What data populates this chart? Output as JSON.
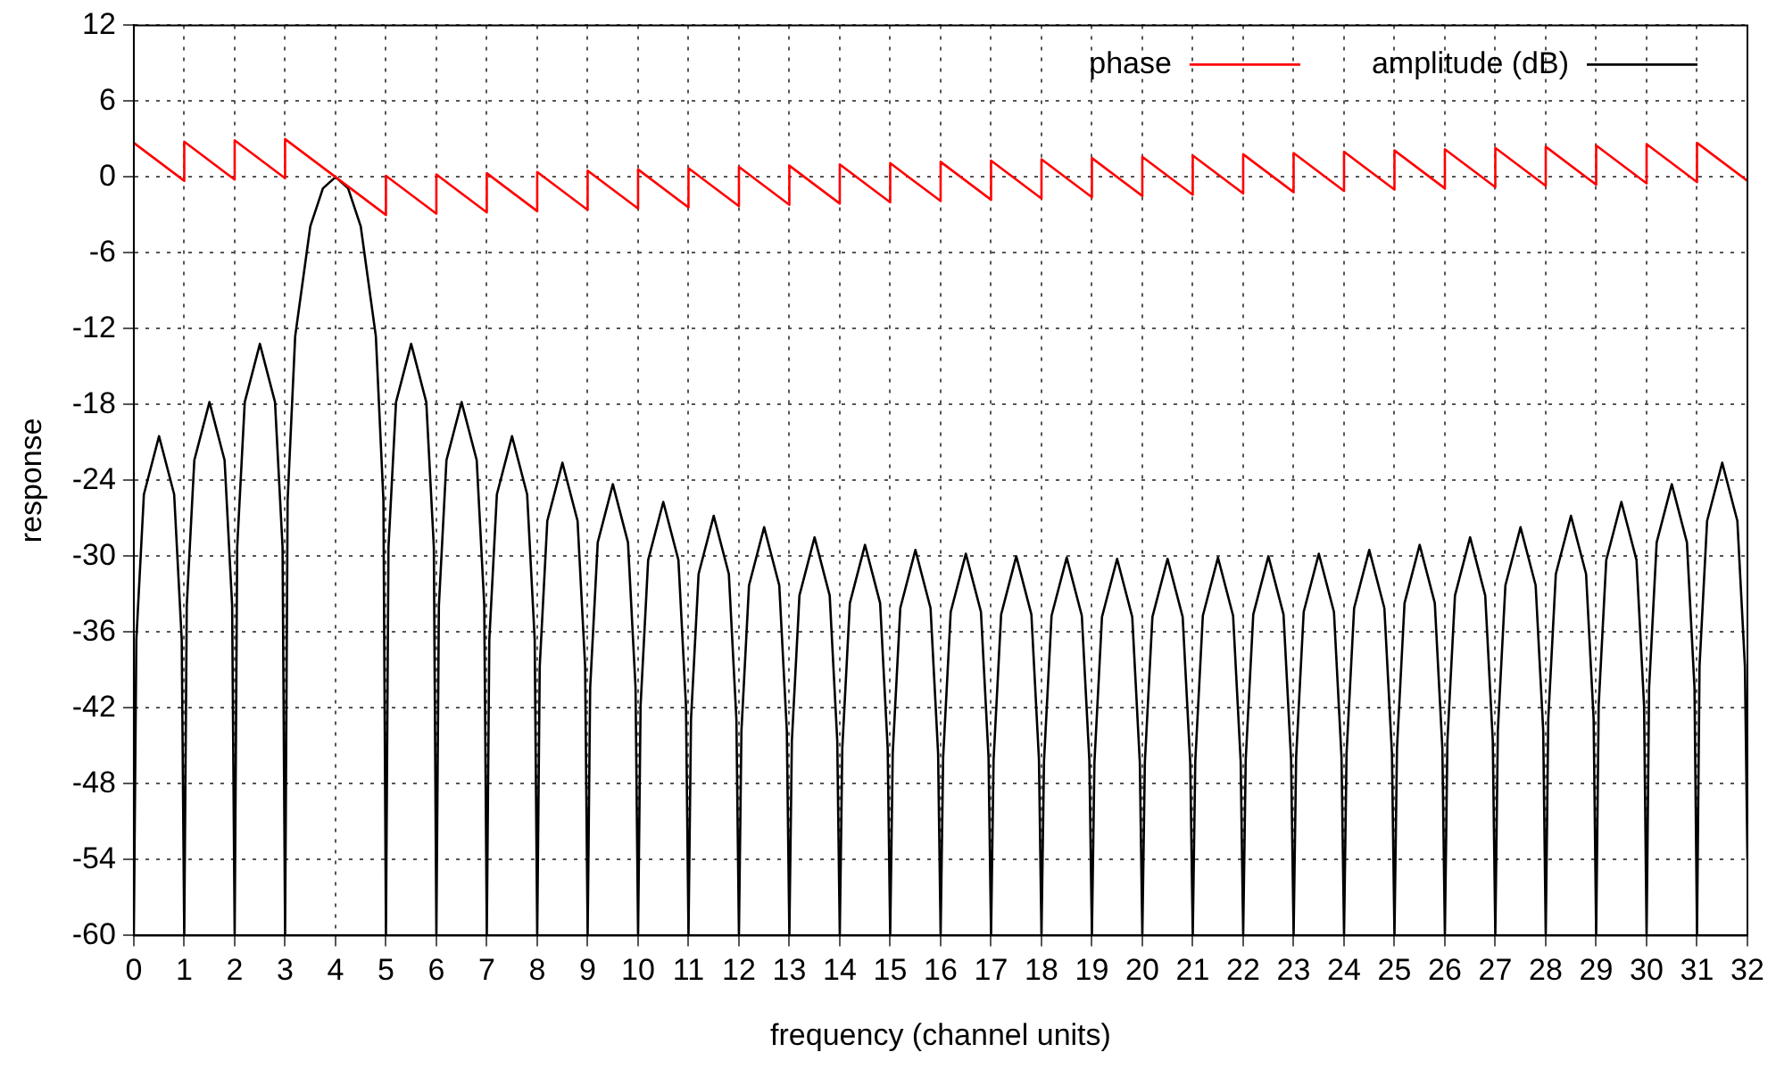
{
  "chart_data": {
    "type": "line",
    "xlabel": "frequency (channel units)",
    "ylabel": "response",
    "xlim": [
      0,
      32
    ],
    "xticks": [
      0,
      1,
      2,
      3,
      4,
      5,
      6,
      7,
      8,
      9,
      10,
      11,
      12,
      13,
      14,
      15,
      16,
      17,
      18,
      19,
      20,
      21,
      22,
      23,
      24,
      25,
      26,
      27,
      28,
      29,
      30,
      31,
      32
    ],
    "ylim": [
      -60,
      12
    ],
    "yticks": [
      -60,
      -54,
      -48,
      -42,
      -36,
      -30,
      -24,
      -18,
      -12,
      -6,
      0,
      6,
      12
    ],
    "grid": true,
    "legend": "top right",
    "line_style": "solid",
    "marker": "none",
    "series": [
      {
        "name": "phase",
        "color": "#ff0000",
        "x": [
          0,
          1,
          1,
          2,
          2,
          3,
          3,
          5,
          5,
          6,
          6,
          7,
          7,
          8,
          8,
          9,
          9,
          10,
          10,
          11,
          11,
          12,
          12,
          13,
          13,
          14,
          14,
          15,
          15,
          16,
          16,
          17,
          17,
          18,
          18,
          19,
          19,
          20,
          20,
          21,
          21,
          22,
          22,
          23,
          23,
          24,
          24,
          25,
          25,
          26,
          26,
          27,
          27,
          28,
          28,
          29,
          29,
          30,
          30,
          31,
          31,
          32
        ],
        "values": [
          2.7,
          -0.3,
          2.8,
          -0.2,
          2.9,
          -0.1,
          3.0,
          -3.0,
          0.1,
          -2.9,
          0.2,
          -2.8,
          0.3,
          -2.7,
          0.4,
          -2.6,
          0.5,
          -2.5,
          0.6,
          -2.4,
          0.7,
          -2.3,
          0.8,
          -2.2,
          0.9,
          -2.1,
          1.0,
          -2.0,
          1.1,
          -1.9,
          1.2,
          -1.8,
          1.3,
          -1.7,
          1.4,
          -1.6,
          1.5,
          -1.5,
          1.6,
          -1.4,
          1.7,
          -1.3,
          1.8,
          -1.2,
          1.9,
          -1.1,
          2.0,
          -1.0,
          2.1,
          -0.9,
          2.2,
          -0.8,
          2.3,
          -0.7,
          2.4,
          -0.6,
          2.5,
          -0.5,
          2.6,
          -0.4,
          2.7,
          -0.3
        ]
      },
      {
        "name": "amplitude (dB)",
        "color": "#000000",
        "x": [
          0,
          0.05,
          0.2,
          0.5,
          0.8,
          0.95,
          1,
          1.05,
          1.2,
          1.5,
          1.8,
          1.95,
          2,
          2.05,
          2.2,
          2.5,
          2.8,
          2.95,
          3,
          3.05,
          3.2,
          3.5,
          3.75,
          4,
          4.25,
          4.5,
          4.8,
          4.95,
          5,
          5.05,
          5.2,
          5.5,
          5.8,
          5.95,
          6,
          6.05,
          6.2,
          6.5,
          6.8,
          6.95,
          7,
          7.05,
          7.2,
          7.5,
          7.8,
          7.95,
          8,
          8.05,
          8.2,
          8.5,
          8.8,
          8.95,
          9,
          9.05,
          9.2,
          9.5,
          9.8,
          9.95,
          10,
          10.05,
          10.2,
          10.5,
          10.8,
          10.95,
          11,
          11.05,
          11.2,
          11.5,
          11.8,
          11.95,
          12,
          12.05,
          12.2,
          12.5,
          12.8,
          12.95,
          13,
          13.05,
          13.2,
          13.5,
          13.8,
          13.95,
          14,
          14.05,
          14.2,
          14.5,
          14.8,
          14.95,
          15,
          15.05,
          15.2,
          15.5,
          15.8,
          15.95,
          16,
          16.05,
          16.2,
          16.5,
          16.8,
          16.95,
          17,
          17.05,
          17.2,
          17.5,
          17.8,
          17.95,
          18,
          18.05,
          18.2,
          18.5,
          18.8,
          18.95,
          19,
          19.05,
          19.2,
          19.5,
          19.8,
          19.95,
          20,
          20.05,
          20.2,
          20.5,
          20.8,
          20.95,
          21,
          21.05,
          21.2,
          21.5,
          21.8,
          21.95,
          22,
          22.05,
          22.2,
          22.5,
          22.8,
          22.95,
          23,
          23.05,
          23.2,
          23.5,
          23.8,
          23.95,
          24,
          24.05,
          24.2,
          24.5,
          24.8,
          24.95,
          25,
          25.05,
          25.2,
          25.5,
          25.8,
          25.95,
          26,
          26.05,
          26.2,
          26.5,
          26.8,
          26.95,
          27,
          27.05,
          27.2,
          27.5,
          27.8,
          27.95,
          28,
          28.05,
          28.2,
          28.5,
          28.8,
          28.95,
          29,
          29.05,
          29.2,
          29.5,
          29.8,
          29.95,
          30,
          30.05,
          30.2,
          30.5,
          30.8,
          30.95,
          31,
          31.05,
          31.2,
          31.5,
          31.8,
          31.95,
          32
        ],
        "values": [
          -60,
          -36.6,
          -25.1,
          -20.5,
          -25.1,
          -36.6,
          -60,
          -33.9,
          -22.4,
          -17.8,
          -22.4,
          -33.9,
          -60,
          -29.3,
          -17.8,
          -13.2,
          -17.8,
          -29.3,
          -60,
          -25.6,
          -12.6,
          -3.9,
          -0.9,
          0,
          -0.9,
          -3.9,
          -12.6,
          -25.6,
          -60,
          -29.3,
          -17.8,
          -13.2,
          -17.8,
          -29.3,
          -60,
          -33.9,
          -22.4,
          -17.8,
          -22.4,
          -33.9,
          -60,
          -36.6,
          -25.1,
          -20.5,
          -25.1,
          -36.6,
          -60,
          -38.7,
          -27.2,
          -22.6,
          -27.2,
          -38.7,
          -60,
          -40.4,
          -28.9,
          -24.3,
          -28.9,
          -40.4,
          -60,
          -41.8,
          -30.3,
          -25.7,
          -30.3,
          -41.8,
          -60,
          -42.9,
          -31.4,
          -26.8,
          -31.4,
          -42.9,
          -60,
          -43.8,
          -32.3,
          -27.7,
          -32.3,
          -43.8,
          -60,
          -44.6,
          -33.1,
          -28.5,
          -33.1,
          -44.6,
          -60,
          -45.2,
          -33.7,
          -29.1,
          -33.7,
          -45.2,
          -60,
          -45.6,
          -34.1,
          -29.5,
          -34.1,
          -45.6,
          -60,
          -45.9,
          -34.4,
          -29.8,
          -34.4,
          -45.9,
          -60,
          -46.1,
          -34.6,
          -30.0,
          -34.6,
          -46.1,
          -60,
          -46.2,
          -34.7,
          -30.1,
          -34.7,
          -46.2,
          -60,
          -46.3,
          -34.8,
          -30.2,
          -34.8,
          -46.3,
          -60,
          -46.3,
          -34.8,
          -30.2,
          -34.8,
          -46.3,
          -60,
          -46.2,
          -34.7,
          -30.1,
          -34.7,
          -46.2,
          -60,
          -46.1,
          -34.6,
          -30.0,
          -34.6,
          -46.1,
          -60,
          -45.9,
          -34.4,
          -29.8,
          -34.4,
          -45.9,
          -60,
          -45.6,
          -34.1,
          -29.5,
          -34.1,
          -45.6,
          -60,
          -45.2,
          -33.7,
          -29.1,
          -33.7,
          -45.2,
          -60,
          -44.6,
          -33.1,
          -28.5,
          -33.1,
          -44.6,
          -60,
          -43.8,
          -32.3,
          -27.7,
          -32.3,
          -43.8,
          -60,
          -42.9,
          -31.4,
          -26.8,
          -31.4,
          -42.9,
          -60,
          -41.8,
          -30.3,
          -25.7,
          -30.3,
          -41.8,
          -60,
          -40.4,
          -28.9,
          -24.3,
          -28.9,
          -40.4,
          -60,
          -38.7,
          -27.2,
          -22.6,
          -27.2,
          -38.7,
          -54
        ]
      }
    ]
  }
}
